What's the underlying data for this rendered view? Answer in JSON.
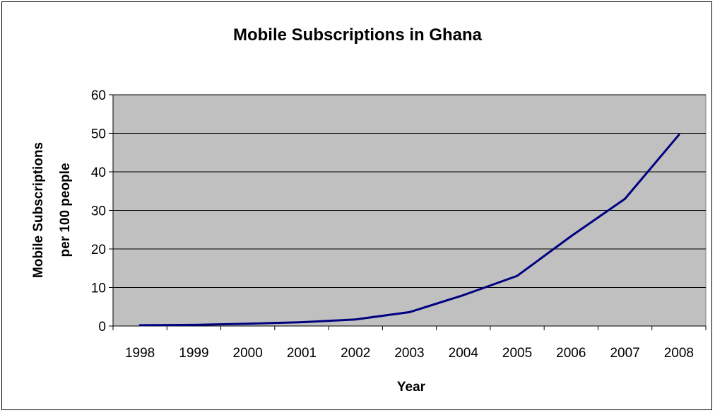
{
  "chart_data": {
    "type": "line",
    "title": "Mobile Subscriptions in Ghana",
    "xlabel": "Year",
    "ylabel": [
      "Mobile Subscriptions",
      "per 100 people"
    ],
    "categories": [
      "1998",
      "1999",
      "2000",
      "2001",
      "2002",
      "2003",
      "2004",
      "2005",
      "2006",
      "2007",
      "2008"
    ],
    "series": [
      {
        "values": [
          0.2,
          0.3,
          0.6,
          1.0,
          1.7,
          3.6,
          8.0,
          13.0,
          23.3,
          33.0,
          49.6
        ],
        "color": "#000080"
      }
    ],
    "ylim": [
      0,
      60
    ],
    "yticks": [
      0,
      10,
      20,
      30,
      40,
      50,
      60
    ],
    "grid": true,
    "plot_background": "#C0C0C0",
    "legend": "none"
  }
}
